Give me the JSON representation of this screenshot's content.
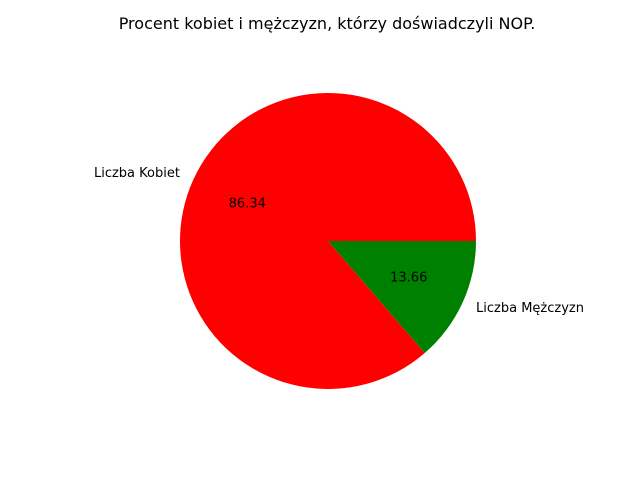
{
  "chart_data": {
    "type": "pie",
    "title": "Procent kobiet i mężczyzn, którzy doświadczyli NOP.",
    "categories": [
      "Liczba Kobiet",
      "Liczba Mężczyzn"
    ],
    "values": [
      86.34,
      13.66
    ],
    "value_labels": [
      "86.34",
      "13.66"
    ],
    "colors": [
      "#ff0000",
      "#008000"
    ]
  }
}
